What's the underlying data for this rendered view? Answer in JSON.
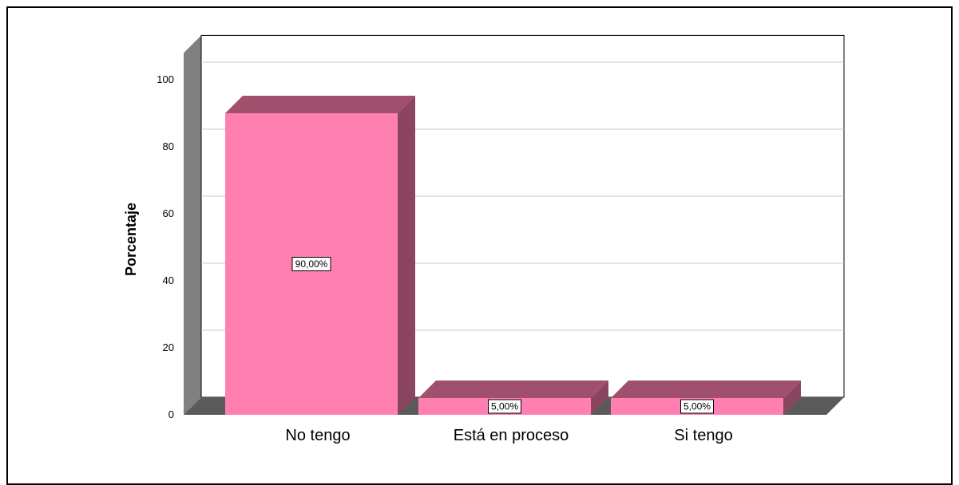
{
  "chart_data": {
    "type": "bar",
    "style": "3d",
    "categories": [
      "No tengo",
      "Está en proceso",
      "Si tengo"
    ],
    "values": [
      90.0,
      5.0,
      5.0
    ],
    "data_labels": [
      "90,00%",
      "5,00%",
      "5,00%"
    ],
    "title": "",
    "xlabel": "",
    "ylabel": "Porcentaje",
    "ylim": [
      0,
      100
    ],
    "yticks": [
      0,
      20,
      40,
      60,
      80,
      100
    ],
    "grid": true,
    "colors": {
      "bar_front": "#ff80b0",
      "bar_top": "#a0506c",
      "bar_side": "#8c4560",
      "wall": "#808080",
      "wall_dark": "#5a5a5a",
      "gridline": "#c8c8c8"
    }
  }
}
